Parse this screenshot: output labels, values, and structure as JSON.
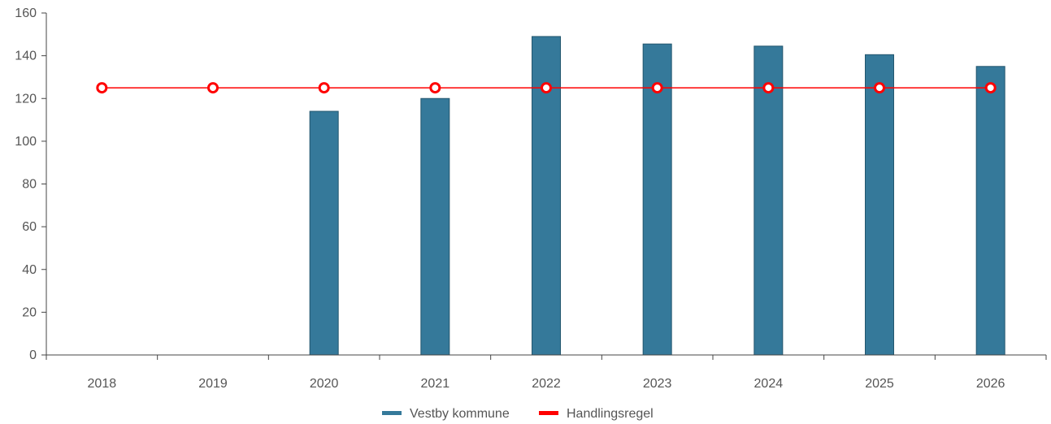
{
  "chart_data": {
    "type": "bar",
    "categories": [
      "2018",
      "2019",
      "2020",
      "2021",
      "2022",
      "2023",
      "2024",
      "2025",
      "2026"
    ],
    "series": [
      {
        "name": "Vestby kommune",
        "kind": "bar",
        "color": "#35799a",
        "values": [
          null,
          null,
          114,
          120,
          149,
          145.5,
          144.5,
          140.5,
          135
        ]
      },
      {
        "name": "Handlingsregel",
        "kind": "line",
        "color": "#ff0000",
        "marker": "hollow-circle",
        "values": [
          125,
          125,
          125,
          125,
          125,
          125,
          125,
          125,
          125
        ]
      }
    ],
    "ylim": [
      0,
      160
    ],
    "yticks": [
      "0",
      "20",
      "40",
      "60",
      "80",
      "100",
      "120",
      "140",
      "160"
    ],
    "grid": false,
    "legend_position": "bottom-center"
  }
}
